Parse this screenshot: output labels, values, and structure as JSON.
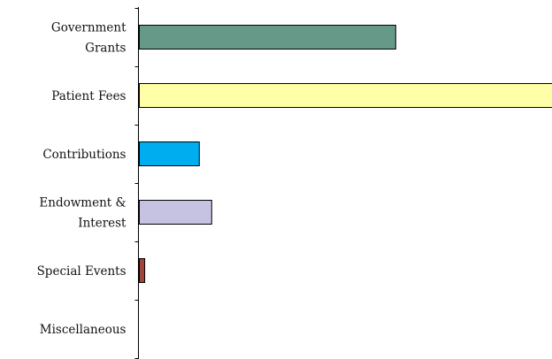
{
  "chart_data": {
    "type": "bar",
    "orientation": "horizontal",
    "categories": [
      [
        "Government",
        "Grants"
      ],
      [
        "Patient Fees"
      ],
      [
        "Contributions"
      ],
      [
        "Endowment &",
        "Interest"
      ],
      [
        "Special Events"
      ],
      [
        "Miscellaneous"
      ]
    ],
    "values": [
      62,
      100,
      14.5,
      17.5,
      1.3,
      0
    ],
    "colors": [
      "#669988",
      "#ffffa8",
      "#00aeef",
      "#c5c3e1",
      "#a0453c",
      "#cccccc"
    ],
    "title": "",
    "xlabel": "",
    "ylabel": "",
    "xlim": [
      0,
      100
    ],
    "grid": false,
    "legend": "none"
  }
}
